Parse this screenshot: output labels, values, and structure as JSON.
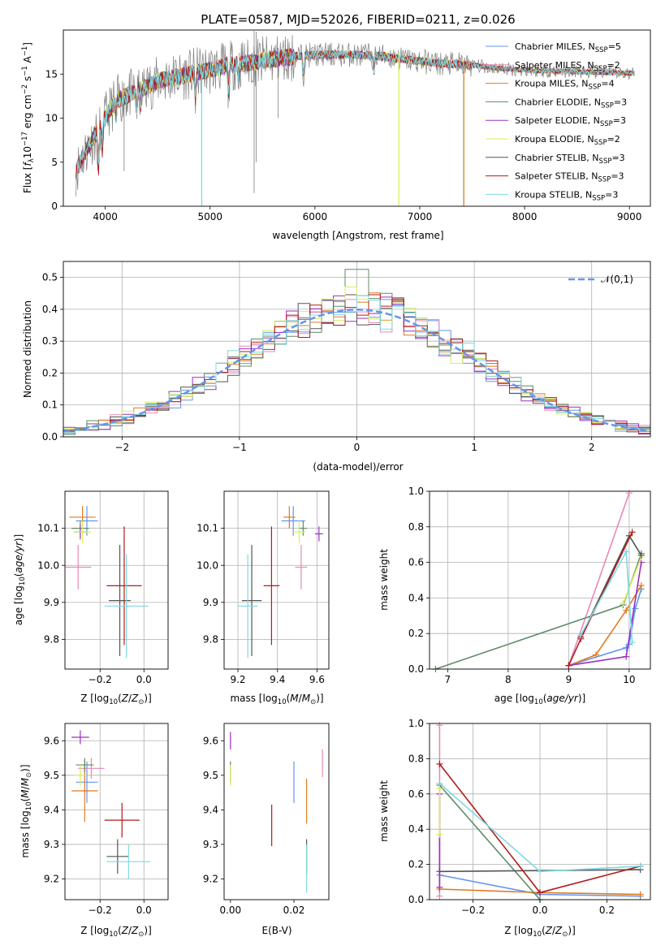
{
  "title": "PLATE=0587, MJD=52026, FIBERID=0211, z=0.026",
  "colors": {
    "Chabrier MILES": "#6495ed",
    "Salpeter MILES": "#e889b6",
    "Kroupa MILES": "#e07b1f",
    "Chabrier ELODIE": "#5f8b68",
    "Salpeter ELODIE": "#9b30c0",
    "Kroupa ELODIE": "#d7ef5a",
    "Chabrier STELIB": "#555555",
    "Salpeter STELIB": "#b31b1b",
    "Kroupa STELIB": "#7fd8e0"
  },
  "chart_data": [
    {
      "type": "line",
      "xlabel": "wavelength [Angstrom, rest frame]",
      "ylabel": "Flux [f_λ10^-17 erg cm^-2 s^-1 A^-1]",
      "xlim": [
        3600,
        9200
      ],
      "ylim": [
        0,
        20
      ],
      "xticks": [
        4000,
        5000,
        6000,
        7000,
        8000,
        9000
      ],
      "yticks": [
        0,
        5,
        10,
        15
      ],
      "grid": false,
      "legend_placement": "upper right",
      "legend": [
        "Chabrier MILES, N_SSP=5",
        "Salpeter MILES, N_SSP=2",
        "Kroupa MILES, N_SSP=4",
        "Chabrier ELODIE, N_SSP=3",
        "Salpeter ELODIE, N_SSP=3",
        "Kroupa ELODIE, N_SSP=2",
        "Chabrier STELIB, N_SSP=3",
        "Salpeter STELIB, N_SSP=3",
        "Kroupa STELIB, N_SSP=3"
      ],
      "legend_series": [
        "Chabrier MILES",
        "Salpeter MILES",
        "Kroupa MILES",
        "Chabrier ELODIE",
        "Salpeter ELODIE",
        "Kroupa ELODIE",
        "Chabrier STELIB",
        "Salpeter STELIB",
        "Kroupa STELIB"
      ],
      "continuum": {
        "x": [
          3720,
          3800,
          3900,
          4000,
          4100,
          4300,
          4500,
          4800,
          5000,
          5200,
          5500,
          5800,
          6000,
          6300,
          6600,
          6900,
          7200,
          7500,
          7800,
          8100,
          8400,
          8700,
          9000,
          9050
        ],
        "y": [
          4,
          6,
          8,
          10,
          12,
          13,
          14.2,
          15,
          15.5,
          16,
          16.5,
          17,
          17.2,
          17.2,
          17.1,
          16.6,
          16.2,
          16,
          15.6,
          15.4,
          15.3,
          15.2,
          15.1,
          15
        ]
      },
      "cutoffs": [
        {
          "series": "Kroupa STELIB",
          "x": 4920
        },
        {
          "series": "Kroupa ELODIE",
          "x": 6800
        },
        {
          "series": "Kroupa MILES",
          "x": 7420
        }
      ]
    },
    {
      "type": "histogram",
      "xlabel": "(data-model)/error",
      "ylabel": "Normed distribution",
      "xlim": [
        -2.5,
        2.5
      ],
      "ylim": [
        0,
        0.55
      ],
      "xticks": [
        -2,
        -1,
        0,
        1,
        2
      ],
      "yticks": [
        0.0,
        0.1,
        0.2,
        0.3,
        0.4,
        0.5
      ],
      "grid": true,
      "legend": [
        "𝒩(0,1)"
      ],
      "legend_placement": "upper right",
      "bin_width": 0.1
    },
    {
      "type": "scatter",
      "xlabel": "Z [log10(Z/Z⊙)]",
      "ylabel": "age  [log10(age/yr)]",
      "xlim": [
        -0.36,
        0.11
      ],
      "ylim": [
        9.72,
        10.2
      ],
      "xticks": [
        -0.2,
        0.0
      ],
      "yticks": [
        9.8,
        9.9,
        10.0,
        10.1
      ],
      "grid": true,
      "points": [
        {
          "series": "Chabrier MILES",
          "x": -0.26,
          "xerr": 0.05,
          "y": 10.12,
          "yerr": 0.04
        },
        {
          "series": "Salpeter MILES",
          "x": -0.3,
          "xerr": 0.06,
          "y": 9.995,
          "yerr": 0.06
        },
        {
          "series": "Kroupa MILES",
          "x": -0.28,
          "xerr": 0.06,
          "y": 10.13,
          "yerr": 0.03
        },
        {
          "series": "Chabrier ELODIE",
          "x": -0.29,
          "xerr": 0.04,
          "y": 10.1,
          "yerr": 0.02
        },
        {
          "series": "Salpeter ELODIE",
          "x": -0.29,
          "xerr": 0.03,
          "y": 10.09,
          "yerr": 0.02
        },
        {
          "series": "Kroupa ELODIE",
          "x": -0.28,
          "xerr": 0.04,
          "y": 10.09,
          "yerr": 0.03
        },
        {
          "series": "Chabrier STELIB",
          "x": -0.11,
          "xerr": 0.05,
          "y": 9.905,
          "yerr": 0.15
        },
        {
          "series": "Salpeter STELIB",
          "x": -0.09,
          "xerr": 0.08,
          "y": 9.945,
          "yerr": 0.16
        },
        {
          "series": "Kroupa STELIB",
          "x": -0.08,
          "xerr": 0.1,
          "y": 9.89,
          "yerr": 0.14
        }
      ]
    },
    {
      "type": "scatter",
      "xlabel": "mass [log10(M/M⊙)]",
      "ylabel": "",
      "xlim": [
        9.13,
        9.66
      ],
      "ylim": [
        9.72,
        10.2
      ],
      "xticks": [
        9.2,
        9.4,
        9.6
      ],
      "yticks": [
        9.8,
        9.9,
        10.0,
        10.1
      ],
      "grid": true,
      "points": [
        {
          "series": "Chabrier MILES",
          "x": 9.48,
          "xerr": 0.06,
          "y": 10.12,
          "yerr": 0.04
        },
        {
          "series": "Salpeter MILES",
          "x": 9.52,
          "xerr": 0.03,
          "y": 9.995,
          "yerr": 0.06
        },
        {
          "series": "Kroupa MILES",
          "x": 9.46,
          "xerr": 0.03,
          "y": 10.13,
          "yerr": 0.03
        },
        {
          "series": "Chabrier ELODIE",
          "x": 9.53,
          "xerr": 0.02,
          "y": 10.1,
          "yerr": 0.02
        },
        {
          "series": "Salpeter ELODIE",
          "x": 9.61,
          "xerr": 0.02,
          "y": 10.085,
          "yerr": 0.02
        },
        {
          "series": "Kroupa ELODIE",
          "x": 9.51,
          "xerr": 0.03,
          "y": 10.09,
          "yerr": 0.03
        },
        {
          "series": "Chabrier STELIB",
          "x": 9.27,
          "xerr": 0.05,
          "y": 9.905,
          "yerr": 0.15
        },
        {
          "series": "Salpeter STELIB",
          "x": 9.37,
          "xerr": 0.04,
          "y": 9.945,
          "yerr": 0.16
        },
        {
          "series": "Kroupa STELIB",
          "x": 9.25,
          "xerr": 0.05,
          "y": 9.89,
          "yerr": 0.14
        }
      ]
    },
    {
      "type": "line",
      "xlabel": "age  [log10(age/yr)]",
      "ylabel": "mass weight",
      "xlim": [
        6.7,
        10.35
      ],
      "ylim": [
        0,
        1.0
      ],
      "xticks": [
        7,
        8,
        9,
        10
      ],
      "yticks": [
        0.0,
        0.2,
        0.4,
        0.6,
        0.8,
        1.0
      ],
      "grid": true,
      "series": [
        {
          "name": "Chabrier MILES",
          "x": [
            9.0,
            9.95,
            10.0,
            10.1,
            10.2
          ],
          "y": [
            0.02,
            0.12,
            0.14,
            0.34,
            0.45
          ]
        },
        {
          "name": "Salpeter MILES",
          "x": [
            9.0,
            10.0
          ],
          "y": [
            0.02,
            0.99
          ]
        },
        {
          "name": "Kroupa MILES",
          "x": [
            9.0,
            9.45,
            9.95,
            10.2
          ],
          "y": [
            0.02,
            0.08,
            0.33,
            0.47
          ]
        },
        {
          "name": "Chabrier ELODIE",
          "x": [
            6.8,
            9.9,
            10.2
          ],
          "y": [
            0.0,
            0.36,
            0.65
          ]
        },
        {
          "name": "Salpeter ELODIE",
          "x": [
            9.0,
            9.95,
            10.2
          ],
          "y": [
            0.02,
            0.07,
            0.6
          ]
        },
        {
          "name": "Kroupa ELODIE",
          "x": [
            9.9,
            10.2
          ],
          "y": [
            0.37,
            0.63
          ]
        },
        {
          "name": "Chabrier STELIB",
          "x": [
            9.2,
            10.0,
            10.2
          ],
          "y": [
            0.18,
            0.75,
            0.64
          ]
        },
        {
          "name": "Salpeter STELIB",
          "x": [
            9.0,
            9.2,
            10.05
          ],
          "y": [
            0.02,
            0.17,
            0.77
          ]
        },
        {
          "name": "Kroupa STELIB",
          "x": [
            9.2,
            9.95,
            10.05
          ],
          "y": [
            0.19,
            0.66,
            0.15
          ]
        }
      ]
    },
    {
      "type": "scatter",
      "xlabel": "Z [log10(Z/Z⊙)]",
      "ylabel": "mass [log10(M/M⊙)]",
      "xlim": [
        -0.36,
        0.11
      ],
      "ylim": [
        9.14,
        9.65
      ],
      "xticks": [
        -0.2,
        0.0
      ],
      "yticks": [
        9.2,
        9.3,
        9.4,
        9.5,
        9.6
      ],
      "grid": true,
      "points": [
        {
          "series": "Chabrier MILES",
          "x": -0.26,
          "xerr": 0.05,
          "y": 9.48,
          "yerr": 0.06
        },
        {
          "series": "Salpeter MILES",
          "x": -0.24,
          "xerr": 0.06,
          "y": 9.52,
          "yerr": 0.03
        },
        {
          "series": "Kroupa MILES",
          "x": -0.27,
          "xerr": 0.06,
          "y": 9.455,
          "yerr": 0.09
        },
        {
          "series": "Chabrier ELODIE",
          "x": -0.27,
          "xerr": 0.04,
          "y": 9.53,
          "yerr": 0.02
        },
        {
          "series": "Salpeter ELODIE",
          "x": -0.29,
          "xerr": 0.04,
          "y": 9.61,
          "yerr": 0.02
        },
        {
          "series": "Kroupa ELODIE",
          "x": -0.29,
          "xerr": 0.03,
          "y": 9.5,
          "yerr": 0.03
        },
        {
          "series": "Chabrier STELIB",
          "x": -0.12,
          "xerr": 0.05,
          "y": 9.265,
          "yerr": 0.05
        },
        {
          "series": "Salpeter STELIB",
          "x": -0.1,
          "xerr": 0.08,
          "y": 9.37,
          "yerr": 0.05
        },
        {
          "series": "Kroupa STELIB",
          "x": -0.07,
          "xerr": 0.1,
          "y": 9.25,
          "yerr": 0.05
        }
      ]
    },
    {
      "type": "scatter",
      "xlabel": "E(B-V)",
      "ylabel": "",
      "xlim": [
        -0.002,
        0.031
      ],
      "ylim": [
        9.14,
        9.65
      ],
      "xticks": [
        0.0,
        0.02
      ],
      "yticks": [
        9.2,
        9.3,
        9.4,
        9.5,
        9.6
      ],
      "grid": false,
      "points": [
        {
          "series": "Chabrier MILES",
          "x": 0.02,
          "y": 9.48,
          "yerr": 0.06
        },
        {
          "series": "Salpeter MILES",
          "x": 0.029,
          "y": 9.535,
          "yerr": 0.04
        },
        {
          "series": "Kroupa MILES",
          "x": 0.024,
          "y": 9.425,
          "yerr": 0.065
        },
        {
          "series": "Chabrier ELODIE",
          "x": 0.0,
          "y": 9.51,
          "yerr": 0.03
        },
        {
          "series": "Salpeter ELODIE",
          "x": 0.0,
          "y": 9.6,
          "yerr": 0.025
        },
        {
          "series": "Kroupa ELODIE",
          "x": 0.0,
          "y": 9.5,
          "yerr": 0.03
        },
        {
          "series": "Chabrier STELIB",
          "x": 0.024,
          "y": 9.265,
          "yerr": 0.05
        },
        {
          "series": "Salpeter STELIB",
          "x": 0.013,
          "y": 9.355,
          "yerr": 0.06
        },
        {
          "series": "Kroupa STELIB",
          "x": 0.024,
          "y": 9.23,
          "yerr": 0.07
        }
      ]
    },
    {
      "type": "line",
      "xlabel": "Z [log10(Z/Z⊙)]",
      "ylabel": "mass weight",
      "xlim": [
        -0.33,
        0.33
      ],
      "ylim": [
        0,
        1.0
      ],
      "xticks": [
        -0.2,
        0.0,
        0.2
      ],
      "yticks": [
        0.0,
        0.2,
        0.4,
        0.6,
        0.8,
        1.0
      ],
      "grid": true,
      "series": [
        {
          "name": "Chabrier MILES",
          "x": [
            -0.3,
            0.0,
            0.3
          ],
          "y": [
            0.14,
            0.03,
            0.02
          ]
        },
        {
          "name": "Salpeter MILES",
          "x": [
            -0.3,
            -0.3
          ],
          "y": [
            0.02,
            0.99
          ]
        },
        {
          "name": "Kroupa MILES",
          "x": [
            -0.3,
            0.0,
            0.3
          ],
          "y": [
            0.06,
            0.04,
            0.03
          ]
        },
        {
          "name": "Chabrier ELODIE",
          "x": [
            -0.3,
            0.0
          ],
          "y": [
            0.65,
            0.0
          ]
        },
        {
          "name": "Salpeter ELODIE",
          "x": [
            -0.3,
            -0.3
          ],
          "y": [
            0.07,
            0.6
          ]
        },
        {
          "name": "Kroupa ELODIE",
          "x": [
            -0.3,
            -0.3
          ],
          "y": [
            0.37,
            0.63
          ]
        },
        {
          "name": "Chabrier STELIB",
          "x": [
            -0.3,
            0.3
          ],
          "y": [
            0.16,
            0.17
          ]
        },
        {
          "name": "Salpeter STELIB",
          "x": [
            -0.3,
            0.0,
            0.3
          ],
          "y": [
            0.77,
            0.04,
            0.19
          ]
        },
        {
          "name": "Kroupa STELIB",
          "x": [
            -0.3,
            0.0,
            0.3
          ],
          "y": [
            0.66,
            0.16,
            0.19
          ]
        }
      ]
    }
  ]
}
